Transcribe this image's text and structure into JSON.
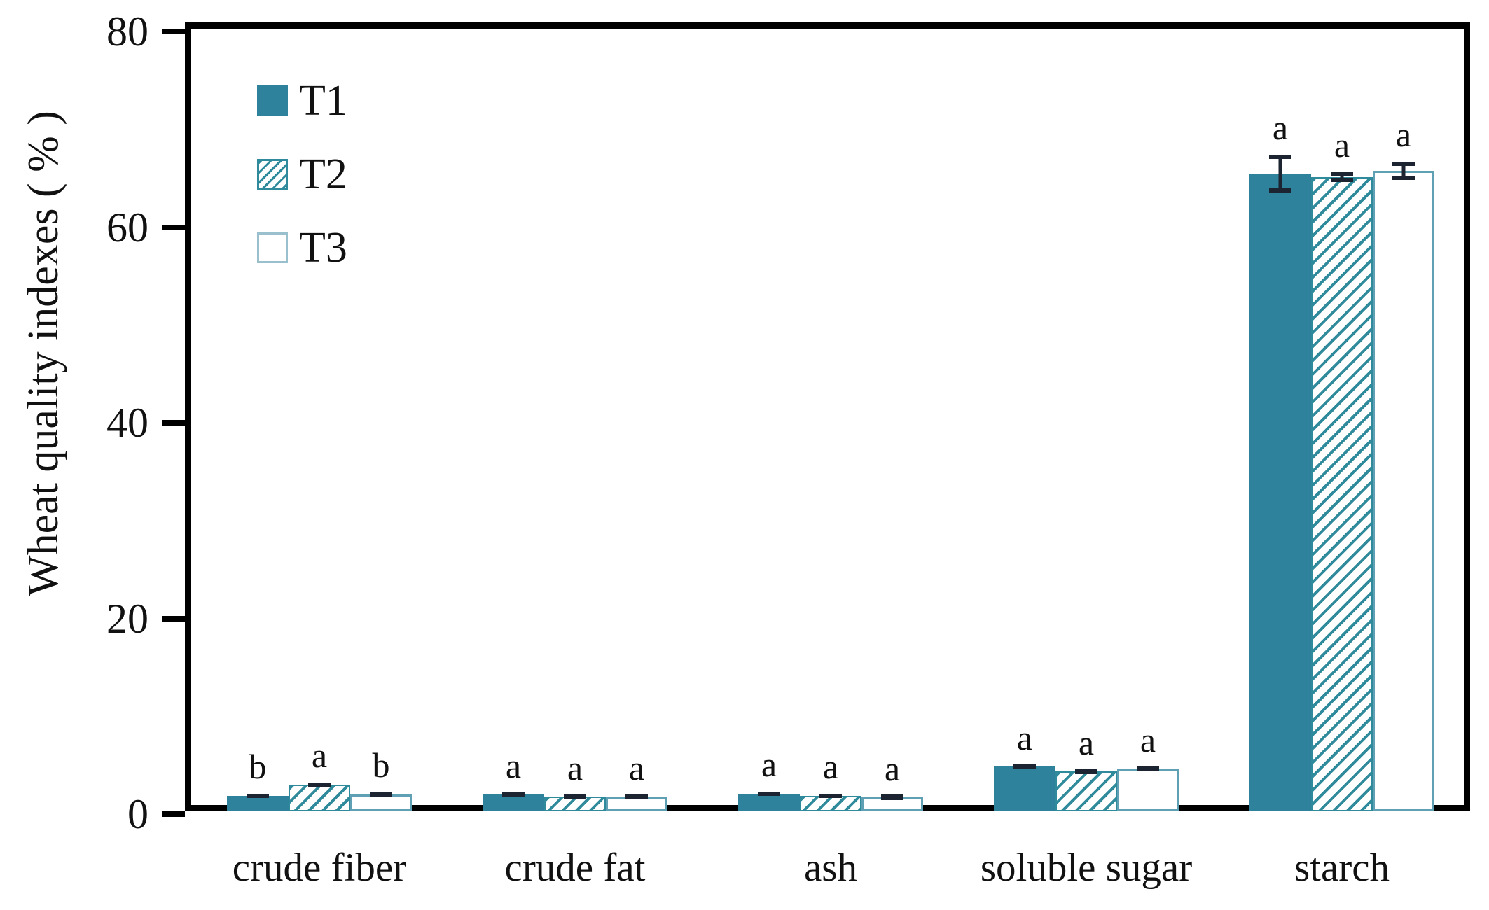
{
  "chart_data": {
    "type": "bar",
    "title": "",
    "ylabel": "Wheat quality indexes ( % )",
    "xlabel": "",
    "categories": [
      "crude fiber",
      "crude fat",
      "ash",
      "soluble sugar",
      "starch"
    ],
    "series": [
      {
        "name": "T1",
        "style": "solid",
        "values": [
          1.6,
          1.7,
          1.8,
          4.6,
          65.2
        ],
        "errors": [
          0.2,
          0.15,
          0.25,
          0.15,
          1.9
        ],
        "letters": [
          "b",
          "a",
          "a",
          "a",
          "a"
        ]
      },
      {
        "name": "T2",
        "style": "hatched",
        "values": [
          2.7,
          1.5,
          1.6,
          4.1,
          64.8
        ],
        "errors": [
          0.2,
          0.15,
          0.25,
          0.15,
          0.5
        ],
        "letters": [
          "a",
          "a",
          "a",
          "a",
          "a"
        ]
      },
      {
        "name": "T3",
        "style": "outline",
        "values": [
          1.7,
          1.5,
          1.4,
          4.4,
          65.5
        ],
        "errors": [
          0.2,
          0.1,
          0.1,
          0.15,
          0.9
        ],
        "letters": [
          "b",
          "a",
          "a",
          "a",
          "a"
        ]
      }
    ],
    "ylim": [
      0,
      80
    ],
    "yticks": [
      0,
      20,
      40,
      60,
      80
    ],
    "legend_position": "top-left",
    "grid": false
  },
  "colors": {
    "t1_fill": "#2F829B",
    "hatch_stroke": "#2F8A9B",
    "t3_border": "#5FA0B5",
    "legend_t3_border": "#9AC0CE",
    "axis": "#000000",
    "error_bar": "#1B2430",
    "text": "#111111"
  }
}
